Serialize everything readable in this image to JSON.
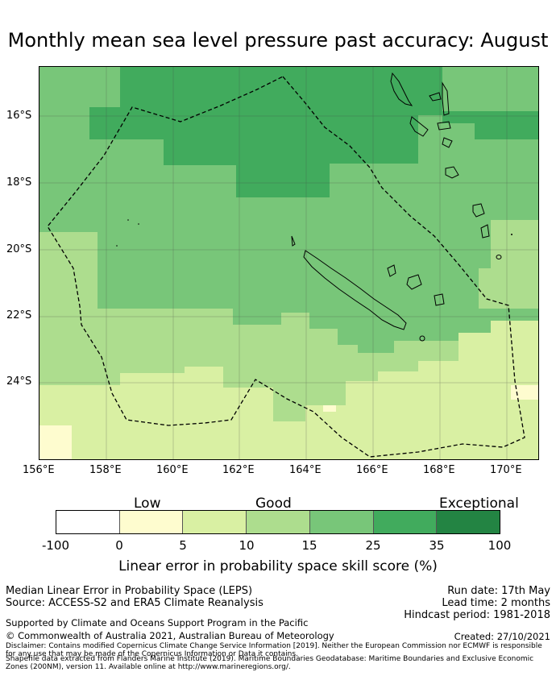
{
  "title": "Monthly mean sea level pressure past accuracy: August",
  "map": {
    "lat_labels": [
      "16°S",
      "18°S",
      "20°S",
      "22°S",
      "24°S"
    ],
    "lon_labels": [
      "156°E",
      "158°E",
      "160°E",
      "162°E",
      "164°E",
      "166°E",
      "168°E",
      "170°E"
    ],
    "lon_range": [
      156,
      171
    ],
    "lat_range": [
      -25.8,
      -14.5
    ],
    "boundary": "dashed maritime boundary (EEZ)"
  },
  "legend": {
    "categories": [
      "Low",
      "Good",
      "Exceptional"
    ],
    "ticks": [
      "-100",
      "0",
      "5",
      "10",
      "15",
      "25",
      "35",
      "100"
    ],
    "colors": [
      "#ffffff",
      "#fefccf",
      "#d9f0a3",
      "#addd8e",
      "#78c679",
      "#41ab5d",
      "#238443"
    ],
    "label": "Linear error in probability space skill score (%)"
  },
  "info": {
    "metric": "Median Linear Error in Probability Space (LEPS)",
    "source": "Source: ACCESS-S2 and ERA5 Climate Reanalysis",
    "run_date": "Run date: 17th May",
    "lead_time": "Lead time: 2 months",
    "hindcast": "Hindcast period: 1981-2018",
    "support": "Supported by Climate and Oceans Support Program in the Pacific",
    "copyright": "© Commonwealth of Australia 2021, Australian Bureau of Meteorology",
    "created": "Created: 27/10/2021",
    "disclaimer": "Disclaimer: Contains modified Copernicus Climate Change Service Information [2019]. Neither the European Commission nor ECMWF is responsible for any use that may be made of the Copernicus Information or Data it contains.",
    "shapefile": "Shapefile data extracted from Flanders Marine Institute (2019). Maritime Boundaries Geodatabase: Maritime Boundaries and Exclusive Economic Zones (200NM), version 11. Available online at http://www.marineregions.org/."
  }
}
